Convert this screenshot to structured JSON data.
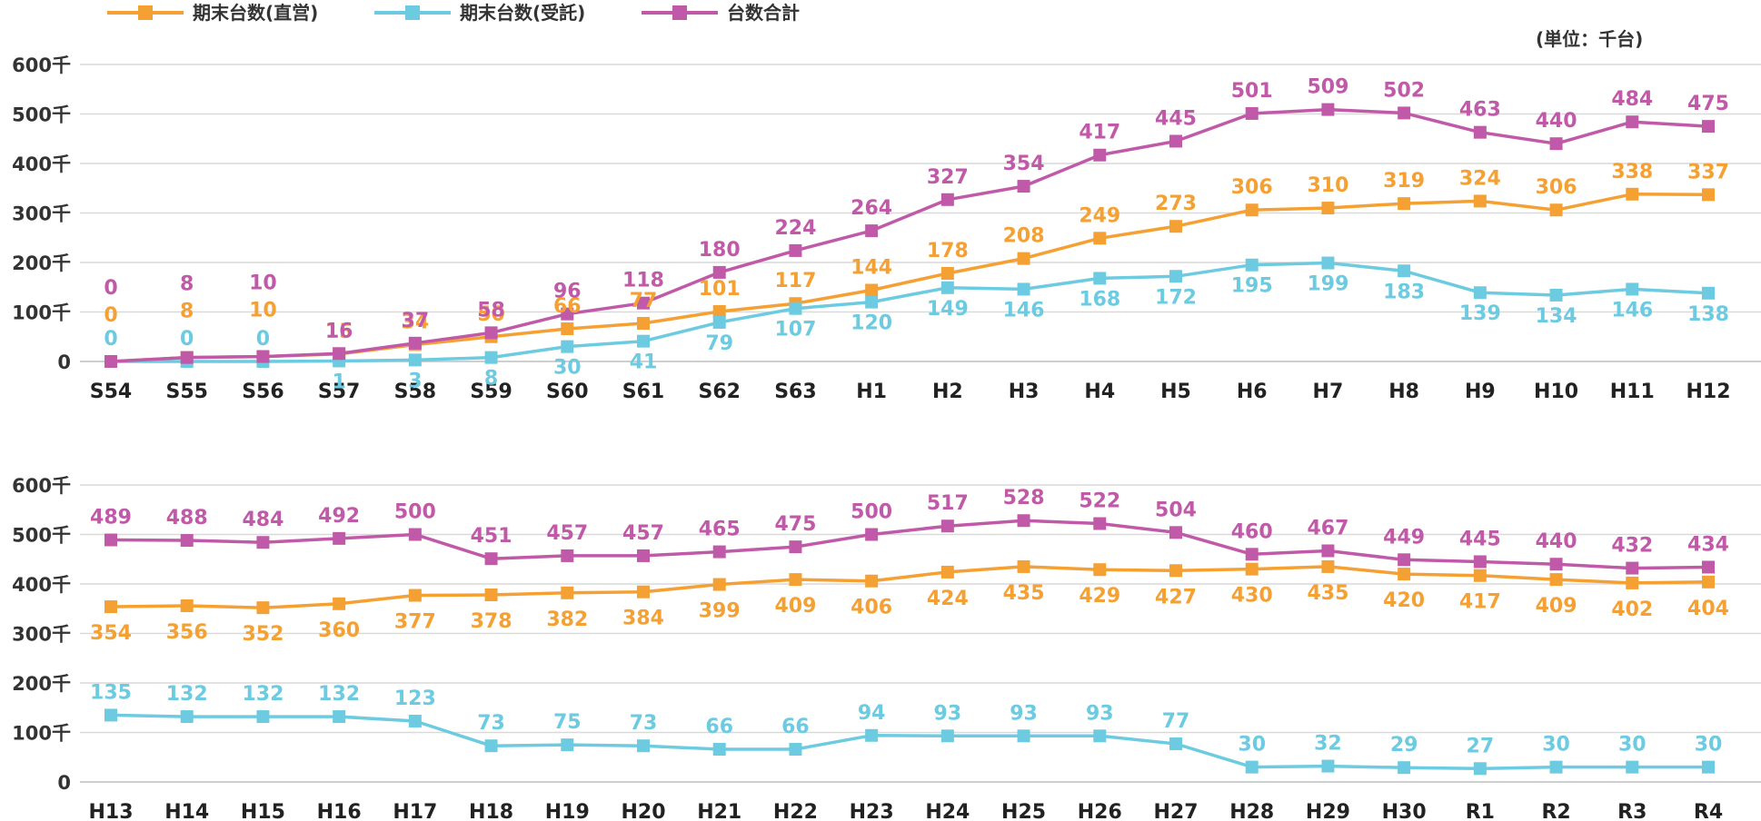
{
  "legend": [
    {
      "label": "期末台数(直営)",
      "color": "#f5a033"
    },
    {
      "label": "期末台数(受託)",
      "color": "#6ccbe0"
    },
    {
      "label": "台数合計",
      "color": "#c05aa8"
    }
  ],
  "unit_label": "(単位：千台)",
  "chart_data": [
    {
      "type": "line",
      "categories": [
        "S54",
        "S55",
        "S56",
        "S57",
        "S58",
        "S59",
        "S60",
        "S61",
        "S62",
        "S63",
        "H1",
        "H2",
        "H3",
        "H4",
        "H5",
        "H6",
        "H7",
        "H8",
        "H9",
        "H10",
        "H11",
        "H12"
      ],
      "yticks": [
        "0",
        "100千",
        "200千",
        "300千",
        "400千",
        "500千",
        "600千"
      ],
      "ylim": [
        0,
        600
      ],
      "grid": true,
      "legend_position": "top-left",
      "series": [
        {
          "name": "期末台数(直営)",
          "color": "#f5a033",
          "values": [
            0,
            8,
            10,
            15,
            34,
            50,
            66,
            77,
            101,
            117,
            144,
            178,
            208,
            249,
            273,
            306,
            310,
            319,
            324,
            306,
            338,
            337
          ],
          "labels": [
            "0",
            "8",
            "10",
            "15",
            "34",
            "50",
            "66",
            "77",
            "101",
            "117",
            "144",
            "178",
            "208",
            "249",
            "273",
            "306",
            "310",
            "319",
            "324",
            "306",
            "338",
            "337"
          ]
        },
        {
          "name": "期末台数(受託)",
          "color": "#6ccbe0",
          "values": [
            0,
            0,
            0,
            1,
            3,
            8,
            30,
            41,
            79,
            107,
            120,
            149,
            146,
            168,
            172,
            195,
            199,
            183,
            139,
            134,
            146,
            138
          ],
          "labels": [
            "0",
            "0",
            "0",
            "1",
            "3",
            "8",
            "30",
            "41",
            "79",
            "107",
            "120",
            "149",
            "146",
            "168",
            "172",
            "195",
            "199",
            "183",
            "139",
            "134",
            "146",
            "138"
          ]
        },
        {
          "name": "台数合計",
          "color": "#c05aa8",
          "values": [
            0,
            8,
            10,
            16,
            37,
            58,
            96,
            118,
            180,
            224,
            264,
            327,
            354,
            417,
            445,
            501,
            509,
            502,
            463,
            440,
            484,
            475
          ],
          "labels": [
            "0",
            "8",
            "10",
            "16",
            "37",
            "58",
            "96",
            "118",
            "180",
            "224",
            "264",
            "327",
            "354",
            "417",
            "445",
            "501",
            "509",
            "502",
            "463",
            "440",
            "484",
            "475"
          ]
        }
      ]
    },
    {
      "type": "line",
      "categories": [
        "H13",
        "H14",
        "H15",
        "H16",
        "H17",
        "H18",
        "H19",
        "H20",
        "H21",
        "H22",
        "H23",
        "H24",
        "H25",
        "H26",
        "H27",
        "H28",
        "H29",
        "H30",
        "R1",
        "R2",
        "R3",
        "R4"
      ],
      "yticks": [
        "0",
        "100千",
        "200千",
        "300千",
        "400千",
        "500千",
        "600千"
      ],
      "ylim": [
        0,
        600
      ],
      "grid": true,
      "series": [
        {
          "name": "期末台数(直営)",
          "color": "#f5a033",
          "values": [
            354,
            356,
            352,
            360,
            377,
            378,
            382,
            384,
            399,
            409,
            406,
            424,
            435,
            429,
            427,
            430,
            435,
            420,
            417,
            409,
            402,
            404
          ],
          "labels": [
            "354",
            "356",
            "352",
            "360",
            "377",
            "378",
            "382",
            "384",
            "399",
            "409",
            "406",
            "424",
            "435",
            "429",
            "427",
            "430",
            "435",
            "420",
            "417",
            "409",
            "402",
            "404"
          ]
        },
        {
          "name": "期末台数(受託)",
          "color": "#6ccbe0",
          "values": [
            135,
            132,
            132,
            132,
            123,
            73,
            75,
            73,
            66,
            66,
            94,
            93,
            93,
            93,
            77,
            30,
            32,
            29,
            27,
            30,
            30,
            30
          ],
          "labels": [
            "135",
            "132",
            "132",
            "132",
            "123",
            "73",
            "75",
            "73",
            "66",
            "66",
            "94",
            "93",
            "93",
            "93",
            "77",
            "30",
            "32",
            "29",
            "27",
            "30",
            "30",
            "30"
          ]
        },
        {
          "name": "台数合計",
          "color": "#c05aa8",
          "values": [
            489,
            488,
            484,
            492,
            500,
            451,
            457,
            457,
            465,
            475,
            500,
            517,
            528,
            522,
            504,
            460,
            467,
            449,
            445,
            440,
            432,
            434
          ],
          "labels": [
            "489",
            "488",
            "484",
            "492",
            "500",
            "451",
            "457",
            "457",
            "465",
            "475",
            "500",
            "517",
            "528",
            "522",
            "504",
            "460",
            "467",
            "449",
            "445",
            "440",
            "432",
            "434"
          ]
        }
      ]
    }
  ]
}
